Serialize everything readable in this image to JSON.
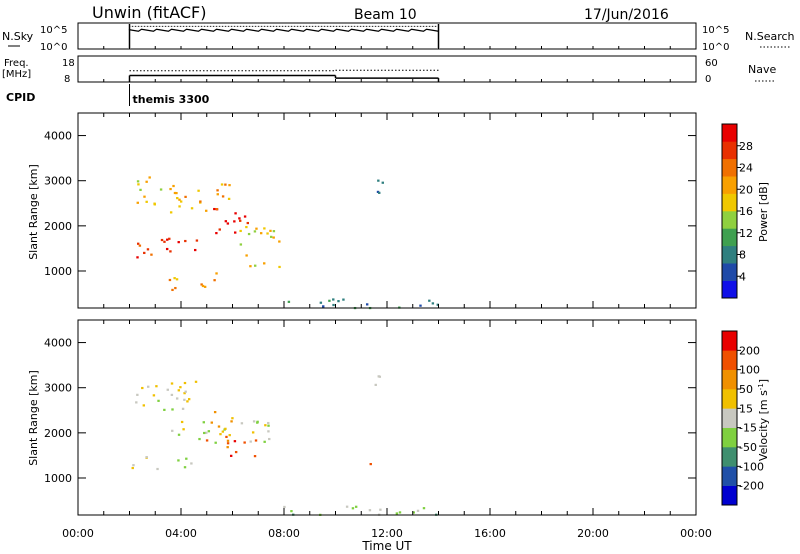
{
  "header": {
    "station": "Unwin (fitACF)",
    "beam": "Beam 10",
    "date": "17/Jun/2016"
  },
  "nsky": {
    "label": "N.Sky",
    "left_ticks": [
      "10^5",
      "10^0"
    ],
    "right_ticks": [
      "10^5",
      "10^0"
    ],
    "right_label": "N.Search"
  },
  "freq": {
    "label_top": "Freq.",
    "label_unit": "[MHz]",
    "left_ticks": [
      "18",
      "8"
    ],
    "right_ticks": [
      "60",
      "0"
    ],
    "right_label": "Nave",
    "freq_segments": [
      {
        "start_h": 2.0,
        "end_h": 10.0,
        "value": 10.5
      },
      {
        "start_h": 10.0,
        "end_h": 14.0,
        "value": 9.5
      }
    ],
    "nave_segments": [
      {
        "start_h": 2.0,
        "end_h": 10.0,
        "value": 26
      },
      {
        "start_h": 10.0,
        "end_h": 14.0,
        "value": 27
      }
    ]
  },
  "cpid": {
    "label": "CPID",
    "text": "themis 3300",
    "start_h": 2.0
  },
  "chart_data": [
    {
      "type": "heatmap",
      "name": "power",
      "ylabel": "Slant Range [km]",
      "ylim": [
        180,
        4500
      ],
      "xlim": [
        0,
        24
      ],
      "yticks": [
        "1000",
        "2000",
        "3000",
        "4000"
      ],
      "colorbar": {
        "label": "Power [dB]",
        "ticks": [
          "4",
          "8",
          "12",
          "16",
          "20",
          "24",
          "28"
        ],
        "colors": [
          "#1010e8",
          "#1f4aa8",
          "#2f7f7f",
          "#3fa050",
          "#8fd03f",
          "#f0c800",
          "#f8a000",
          "#f07000",
          "#e83000",
          "#e80000"
        ]
      },
      "patches": [
        {
          "x0": 2.0,
          "x1": 3.2,
          "y0": 1300,
          "y1": 1700,
          "level": 8
        },
        {
          "x0": 3.2,
          "x1": 5.2,
          "y0": 1400,
          "y1": 1800,
          "level": 9
        },
        {
          "x0": 5.2,
          "x1": 6.8,
          "y0": 1700,
          "y1": 2400,
          "level": 9
        },
        {
          "x0": 3.5,
          "x1": 6.0,
          "y0": 2300,
          "y1": 3000,
          "level": 6
        },
        {
          "x0": 2.2,
          "x1": 4.0,
          "y0": 2500,
          "y1": 3100,
          "level": 5
        },
        {
          "x0": 6.2,
          "x1": 7.8,
          "y0": 1000,
          "y1": 2000,
          "level": 5
        },
        {
          "x0": 3.5,
          "x1": 5.5,
          "y0": 600,
          "y1": 1000,
          "level": 6
        },
        {
          "x0": 11.5,
          "x1": 12.0,
          "y0": 2700,
          "y1": 3300,
          "level": 1
        },
        {
          "x0": 7.5,
          "x1": 14.0,
          "y0": 200,
          "y1": 400,
          "level": 2
        }
      ]
    },
    {
      "type": "heatmap",
      "name": "velocity",
      "ylabel": "Slant Range [km]",
      "xlabel": "Time UT",
      "ylim": [
        180,
        4500
      ],
      "xlim": [
        0,
        24
      ],
      "yticks": [
        "1000",
        "2000",
        "3000",
        "4000"
      ],
      "xticks": [
        "00:00",
        "04:00",
        "08:00",
        "12:00",
        "16:00",
        "20:00",
        "00:00"
      ],
      "colorbar": {
        "label": "Velocity [m s^-1]",
        "ticks": [
          "200",
          "100",
          "50",
          "15",
          "-15",
          "-50",
          "-100",
          "-200"
        ],
        "colors": [
          "#0000d0",
          "#2050a8",
          "#3f8f6f",
          "#7fd040",
          "#c8c8c0",
          "#f0c000",
          "#f09000",
          "#f05000",
          "#e80000"
        ]
      },
      "patches": [
        {
          "x0": 2.0,
          "x1": 4.5,
          "y0": 1200,
          "y1": 1500,
          "level": 4
        },
        {
          "x0": 3.5,
          "x1": 7.5,
          "y0": 1800,
          "y1": 2300,
          "level": 4
        },
        {
          "x0": 2.2,
          "x1": 5.0,
          "y0": 2500,
          "y1": 3200,
          "level": 4
        },
        {
          "x0": 5.5,
          "x1": 7.0,
          "y0": 1500,
          "y1": 2000,
          "level": 7
        },
        {
          "x0": 4.8,
          "x1": 6.0,
          "y0": 1800,
          "y1": 2500,
          "level": 6
        },
        {
          "x0": 11.3,
          "x1": 11.8,
          "y0": 1300,
          "y1": 1450,
          "level": 8
        },
        {
          "x0": 11.5,
          "x1": 12.0,
          "y0": 2800,
          "y1": 3300,
          "level": 3
        },
        {
          "x0": 7.5,
          "x1": 14.0,
          "y0": 200,
          "y1": 400,
          "level": 3
        }
      ]
    }
  ]
}
